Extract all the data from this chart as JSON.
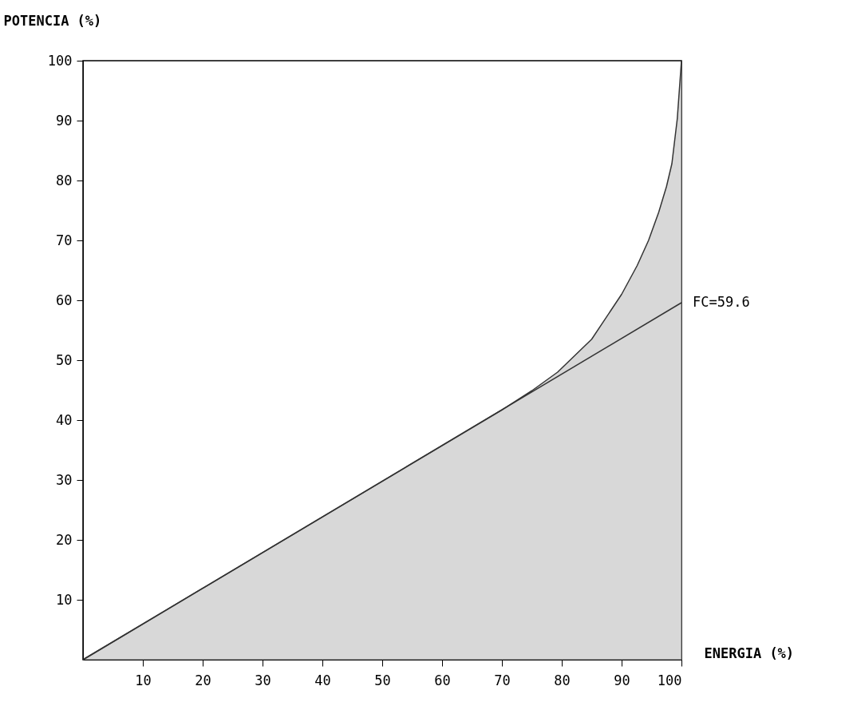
{
  "chart_data": {
    "type": "area",
    "xlabel": "ENERGIA (%)",
    "ylabel": "POTENCIA (%)",
    "xlim": [
      0,
      100
    ],
    "ylim": [
      0,
      100
    ],
    "xticks": [
      10,
      20,
      30,
      40,
      50,
      60,
      70,
      80,
      90,
      100
    ],
    "yticks": [
      10,
      20,
      30,
      40,
      50,
      60,
      70,
      80,
      90,
      100
    ],
    "grid": false,
    "series": [
      {
        "color": "#333333",
        "x": [
          0,
          70,
          75,
          79.3,
          85,
          88.2,
          90,
          92.6,
          94.5,
          96.2,
          97.5,
          98.4,
          99.3,
          100
        ],
        "values": [
          0,
          41.7,
          44.9,
          48,
          53.5,
          58.3,
          61,
          65.8,
          70,
          74.7,
          79,
          82.8,
          90.3,
          100
        ]
      },
      {
        "type": "line",
        "name": "FC=59.6",
        "color": "#333333",
        "x": [
          0,
          100
        ],
        "values": [
          0,
          59.6
        ]
      }
    ]
  }
}
